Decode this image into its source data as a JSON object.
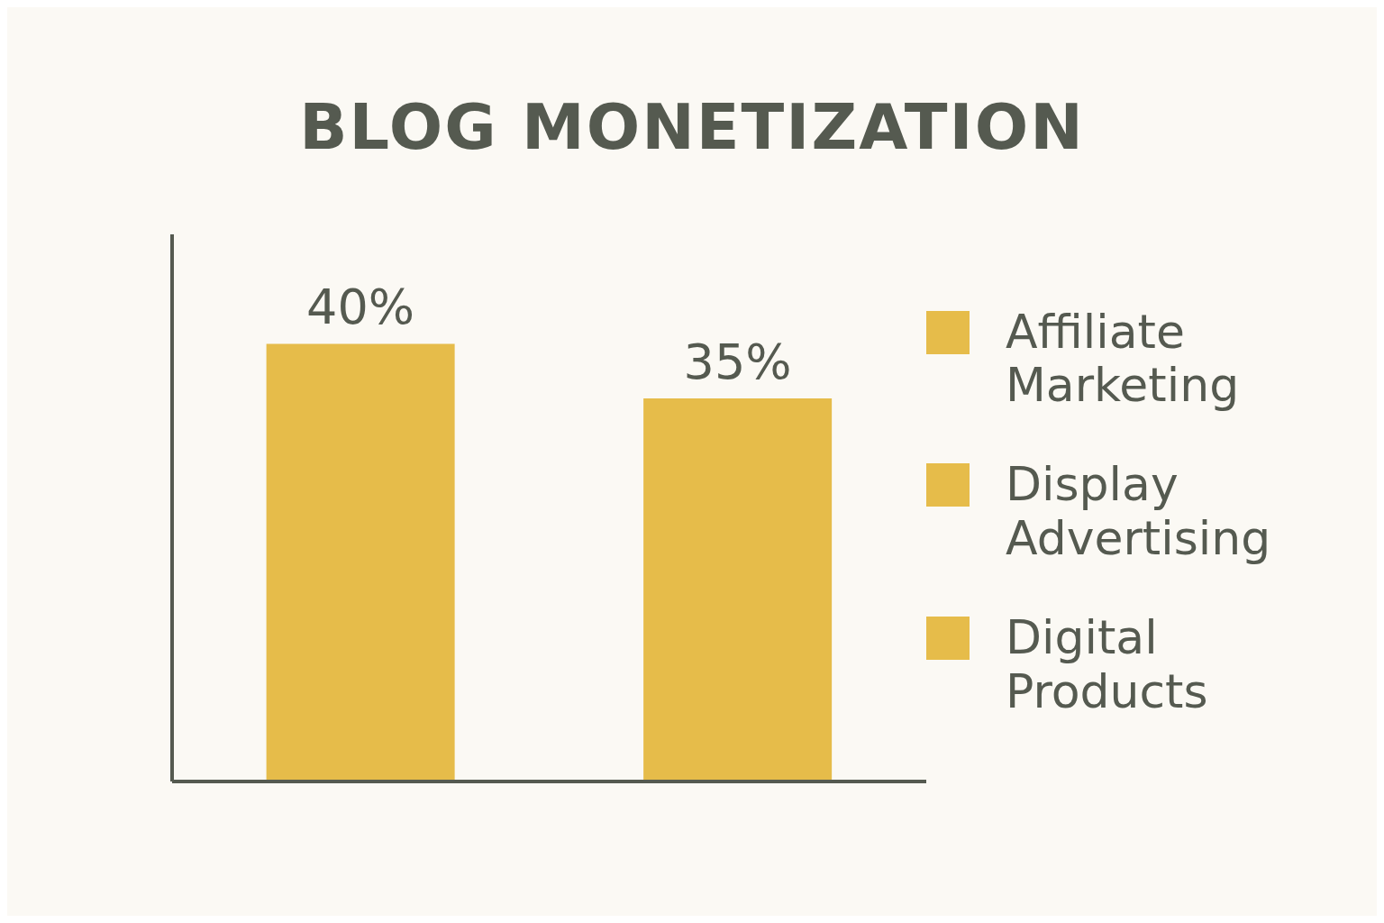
{
  "chart_data": {
    "type": "bar",
    "title": "BLOG MONETIZATION",
    "categories": [
      null,
      null
    ],
    "stacked": true,
    "ylim": [
      0,
      50
    ],
    "tick_labels": false,
    "legend": "right",
    "series": [
      {
        "name": "Affiliate Marketing",
        "color": "#e6bc4a",
        "values": [
          40,
          null
        ],
        "value_labels": [
          "40%",
          null
        ]
      },
      {
        "name": "Display Advertising",
        "color": "#e6bc4a",
        "values": [
          null,
          35
        ],
        "value_labels": [
          null,
          "35%"
        ]
      },
      {
        "name": "Digital Products",
        "color": "#e6bc4a",
        "values": [
          null,
          null
        ],
        "value_labels": [
          null,
          null
        ]
      }
    ]
  }
}
